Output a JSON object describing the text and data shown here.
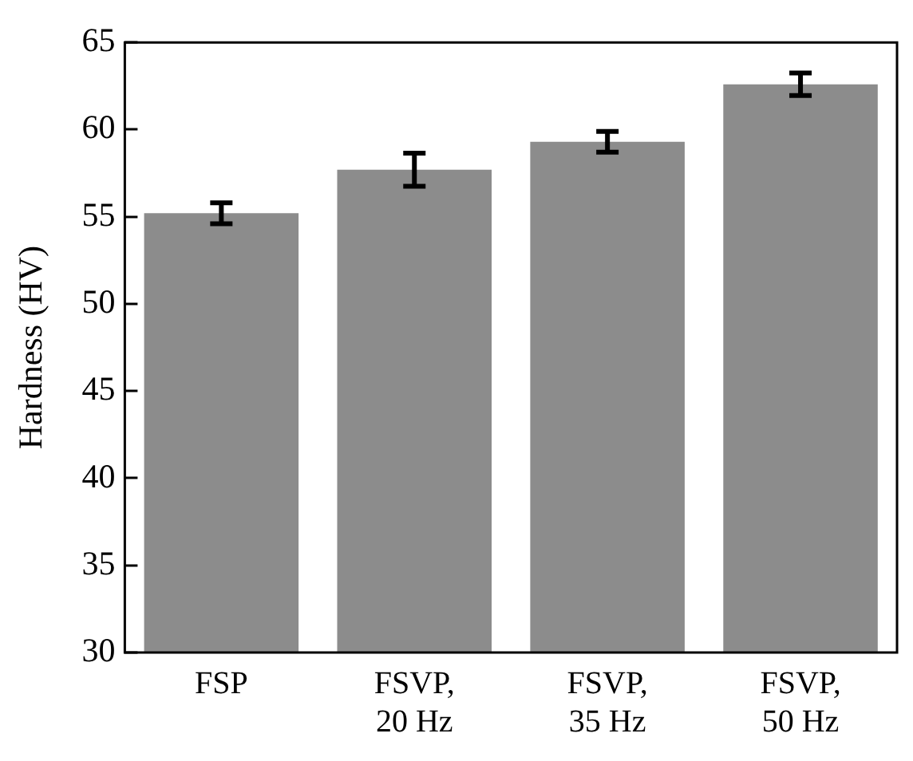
{
  "chart_data": {
    "type": "bar",
    "ylabel": "Hardness (HV)",
    "categories": [
      "FSP",
      "FSVP,\n20 Hz",
      "FSVP,\n35 Hz",
      "FSVP,\n50 Hz"
    ],
    "values": [
      55.2,
      57.7,
      59.3,
      62.6
    ],
    "errors": [
      0.6,
      0.95,
      0.6,
      0.65
    ],
    "color": "#8c8c8c",
    "ylim": [
      30,
      65
    ],
    "yticks": [
      30,
      35,
      40,
      45,
      50,
      55,
      60,
      65
    ],
    "grid": false,
    "legend": false
  }
}
